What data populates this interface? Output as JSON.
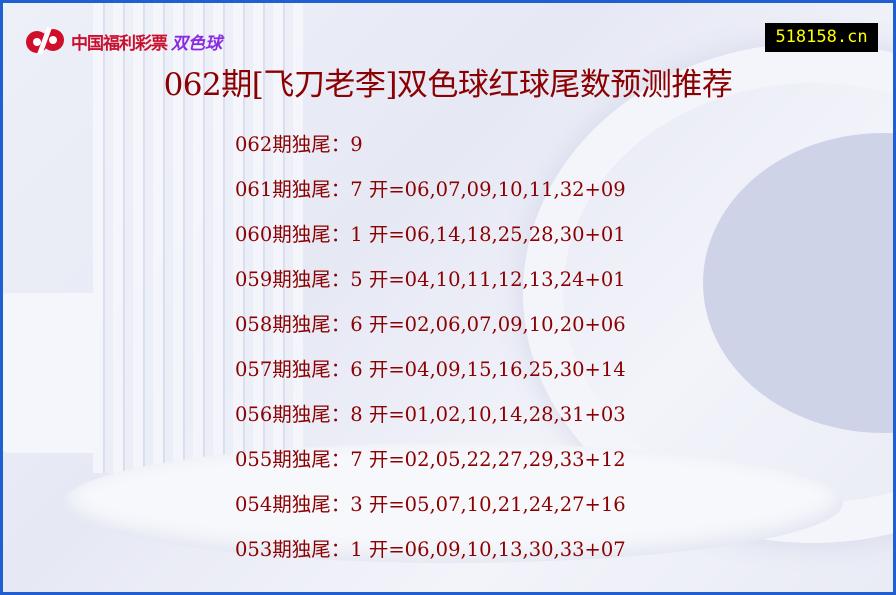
{
  "logo": {
    "text": "中国福利彩票",
    "product": "双色球"
  },
  "site_badge": "518158.cn",
  "title": "062期[飞刀老李]双色球红球尾数预测推荐",
  "rows": [
    "062期独尾：9",
    "061期独尾：7 开=06,07,09,10,11,32+09",
    "060期独尾：1 开=06,14,18,25,28,30+01",
    "059期独尾：5 开=04,10,11,12,13,24+01",
    "058期独尾：6 开=02,06,07,09,10,20+06",
    "057期独尾：6 开=04,09,15,16,25,30+14",
    "056期独尾：8 开=01,02,10,14,28,31+03",
    "055期独尾：7 开=02,05,22,27,29,33+12",
    "054期独尾：3 开=05,07,10,21,24,27+16",
    "053期独尾：1 开=06,09,10,13,30,33+07"
  ],
  "colors": {
    "border": "#1f5fd0",
    "text": "#8b0000",
    "badge_bg": "#000000",
    "badge_text": "#ffff00"
  }
}
